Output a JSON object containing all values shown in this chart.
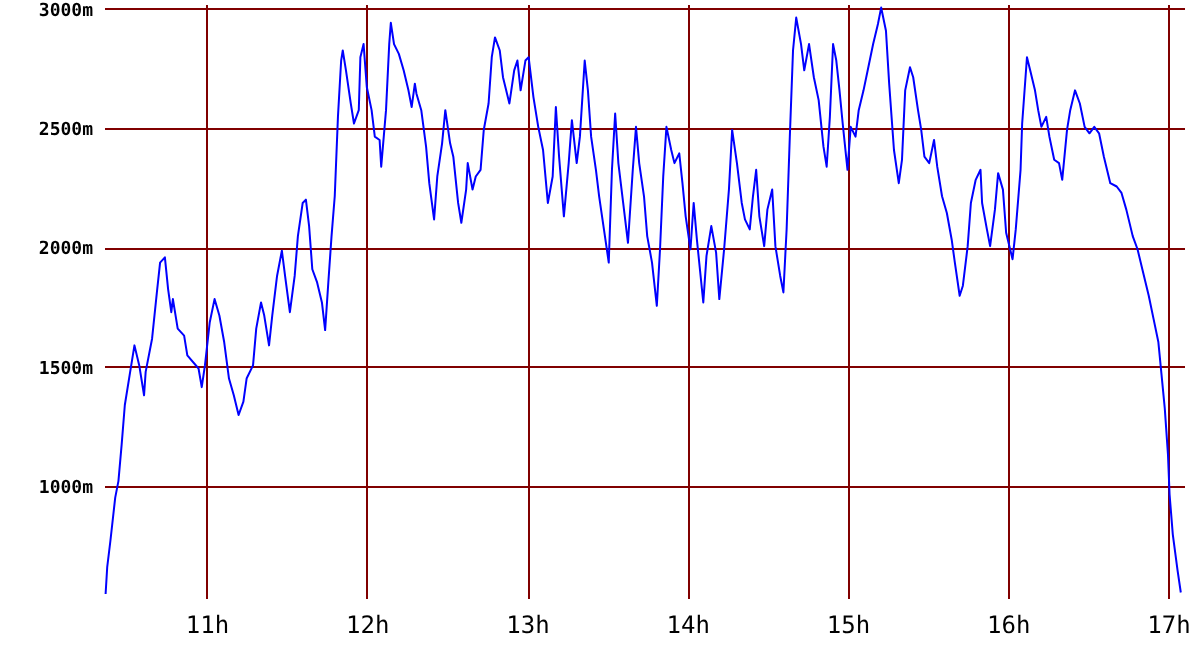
{
  "chart_data": {
    "type": "line",
    "x": [
      10.37,
      10.38,
      10.4,
      10.43,
      10.45,
      10.47,
      10.49,
      10.52,
      10.55,
      10.58,
      10.61,
      10.62,
      10.66,
      10.69,
      10.71,
      10.74,
      10.76,
      10.78,
      10.79,
      10.82,
      10.86,
      10.88,
      10.95,
      10.97,
      10.99,
      11.02,
      11.05,
      11.08,
      11.11,
      11.14,
      11.17,
      11.2,
      11.23,
      11.25,
      11.29,
      11.31,
      11.34,
      11.36,
      11.39,
      11.41,
      11.44,
      11.47,
      11.49,
      11.52,
      11.55,
      11.57,
      11.6,
      11.62,
      11.64,
      11.66,
      11.69,
      11.72,
      11.74,
      11.76,
      11.78,
      11.8,
      11.82,
      11.84,
      11.85,
      11.87,
      11.9,
      11.92,
      11.95,
      11.96,
      11.98,
      12.0,
      12.03,
      12.05,
      12.08,
      12.09,
      12.12,
      12.14,
      12.15,
      12.17,
      12.2,
      12.23,
      12.26,
      12.28,
      12.3,
      12.31,
      12.34,
      12.37,
      12.39,
      12.42,
      12.44,
      12.47,
      12.49,
      12.52,
      12.54,
      12.57,
      12.59,
      12.62,
      12.63,
      12.66,
      12.68,
      12.71,
      12.73,
      12.76,
      12.78,
      12.8,
      12.83,
      12.85,
      12.89,
      12.92,
      12.94,
      12.96,
      12.99,
      13.01,
      13.04,
      13.07,
      13.1,
      13.13,
      13.16,
      13.18,
      13.2,
      13.23,
      13.26,
      13.28,
      13.31,
      13.33,
      13.36,
      13.38,
      13.4,
      13.43,
      13.45,
      13.48,
      13.51,
      13.53,
      13.55,
      13.57,
      13.6,
      13.63,
      13.66,
      13.68,
      13.7,
      13.73,
      13.75,
      13.78,
      13.81,
      13.83,
      13.85,
      13.87,
      13.9,
      13.92,
      13.95,
      13.97,
      13.99,
      14.02,
      14.04,
      14.06,
      14.1,
      14.12,
      14.15,
      14.18,
      14.2,
      14.23,
      14.26,
      14.28,
      14.31,
      14.34,
      14.36,
      14.39,
      14.41,
      14.43,
      14.45,
      14.48,
      14.5,
      14.53,
      14.55,
      14.58,
      14.6,
      14.62,
      14.64,
      14.66,
      14.68,
      14.71,
      14.73,
      14.76,
      14.79,
      14.82,
      14.85,
      14.87,
      14.89,
      14.91,
      14.93,
      14.95,
      14.97,
      15.0,
      15.02,
      15.05,
      15.07,
      15.1,
      15.13,
      15.16,
      15.19,
      15.21,
      15.24,
      15.26,
      15.29,
      15.32,
      15.34,
      15.36,
      15.39,
      15.41,
      15.44,
      15.46,
      15.48,
      15.51,
      15.54,
      15.56,
      15.59,
      15.62,
      15.65,
      15.67,
      15.7,
      15.72,
      15.75,
      15.77,
      15.8,
      15.83,
      15.84,
      15.87,
      15.89,
      15.92,
      15.94,
      15.97,
      15.99,
      16.03,
      16.05,
      16.08,
      16.09,
      16.12,
      16.14,
      16.17,
      16.19,
      16.21,
      16.24,
      16.26,
      16.29,
      16.32,
      16.34,
      16.37,
      16.39,
      16.42,
      16.45,
      16.48,
      16.51,
      16.54,
      16.57,
      16.6,
      16.64,
      16.68,
      16.71,
      16.74,
      16.78,
      16.81,
      16.84,
      16.88,
      16.91,
      16.94,
      16.96,
      16.98,
      17.0,
      17.01,
      17.03,
      17.06,
      17.08
    ],
    "series": [
      {
        "color": "#0000ff",
        "values": [
          547,
          659,
          770,
          951,
          1020,
          1172,
          1339,
          1464,
          1589,
          1505,
          1380,
          1478,
          1617,
          1811,
          1936,
          1958,
          1825,
          1728,
          1783,
          1659,
          1630,
          1547,
          1492,
          1414,
          1505,
          1686,
          1783,
          1714,
          1603,
          1450,
          1380,
          1297,
          1353,
          1450,
          1505,
          1659,
          1769,
          1714,
          1589,
          1714,
          1880,
          1986,
          1880,
          1728,
          1880,
          2047,
          2186,
          2200,
          2089,
          1908,
          1853,
          1769,
          1653,
          1853,
          2047,
          2214,
          2547,
          2783,
          2825,
          2742,
          2603,
          2519,
          2575,
          2797,
          2852,
          2672,
          2575,
          2464,
          2450,
          2338,
          2575,
          2852,
          2941,
          2852,
          2811,
          2742,
          2658,
          2588,
          2686,
          2644,
          2575,
          2422,
          2269,
          2117,
          2297,
          2436,
          2575,
          2436,
          2380,
          2186,
          2103,
          2242,
          2353,
          2242,
          2297,
          2325,
          2492,
          2603,
          2797,
          2880,
          2825,
          2713,
          2603,
          2742,
          2783,
          2658,
          2783,
          2797,
          2630,
          2505,
          2408,
          2186,
          2297,
          2588,
          2380,
          2130,
          2353,
          2533,
          2353,
          2464,
          2783,
          2658,
          2464,
          2325,
          2214,
          2075,
          1936,
          2325,
          2561,
          2353,
          2186,
          2019,
          2325,
          2505,
          2353,
          2214,
          2047,
          1936,
          1755,
          1992,
          2297,
          2505,
          2408,
          2353,
          2394,
          2269,
          2130,
          1992,
          2186,
          2033,
          1769,
          1964,
          2089,
          1978,
          1783,
          1992,
          2242,
          2492,
          2353,
          2186,
          2117,
          2075,
          2214,
          2325,
          2130,
          2005,
          2158,
          2242,
          2005,
          1880,
          1811,
          2075,
          2464,
          2825,
          2963,
          2852,
          2742,
          2852,
          2713,
          2617,
          2422,
          2338,
          2547,
          2852,
          2783,
          2658,
          2519,
          2325,
          2505,
          2464,
          2575,
          2658,
          2755,
          2852,
          2936,
          3005,
          2908,
          2686,
          2408,
          2269,
          2367,
          2658,
          2755,
          2713,
          2575,
          2492,
          2380,
          2353,
          2450,
          2338,
          2214,
          2144,
          2033,
          1936,
          1797,
          1839,
          2005,
          2186,
          2283,
          2325,
          2186,
          2075,
          2005,
          2158,
          2311,
          2242,
          2061,
          1950,
          2075,
          2325,
          2519,
          2797,
          2742,
          2658,
          2575,
          2505,
          2547,
          2464,
          2367,
          2353,
          2283,
          2492,
          2575,
          2658,
          2603,
          2505,
          2478,
          2505,
          2478,
          2380,
          2269,
          2255,
          2228,
          2158,
          2047,
          1992,
          1908,
          1797,
          1700,
          1603,
          1464,
          1325,
          1131,
          964,
          797,
          645,
          553
        ]
      }
    ],
    "xlim": [
      10.36,
      17.1
    ],
    "xticks": [
      {
        "value": 11,
        "label": "11h"
      },
      {
        "value": 12,
        "label": "12h"
      },
      {
        "value": 13,
        "label": "13h"
      },
      {
        "value": 14,
        "label": "14h"
      },
      {
        "value": 15,
        "label": "15h"
      },
      {
        "value": 16,
        "label": "16h"
      },
      {
        "value": 17,
        "label": "17h"
      }
    ],
    "ylim": [
      530,
      3020
    ],
    "yticks": [
      {
        "value": 1000,
        "label": "1000m"
      },
      {
        "value": 1500,
        "label": "1500m"
      },
      {
        "value": 2000,
        "label": "2000m"
      },
      {
        "value": 2500,
        "label": "2500m"
      },
      {
        "value": 3000,
        "label": "3000m"
      }
    ],
    "grid": true
  }
}
